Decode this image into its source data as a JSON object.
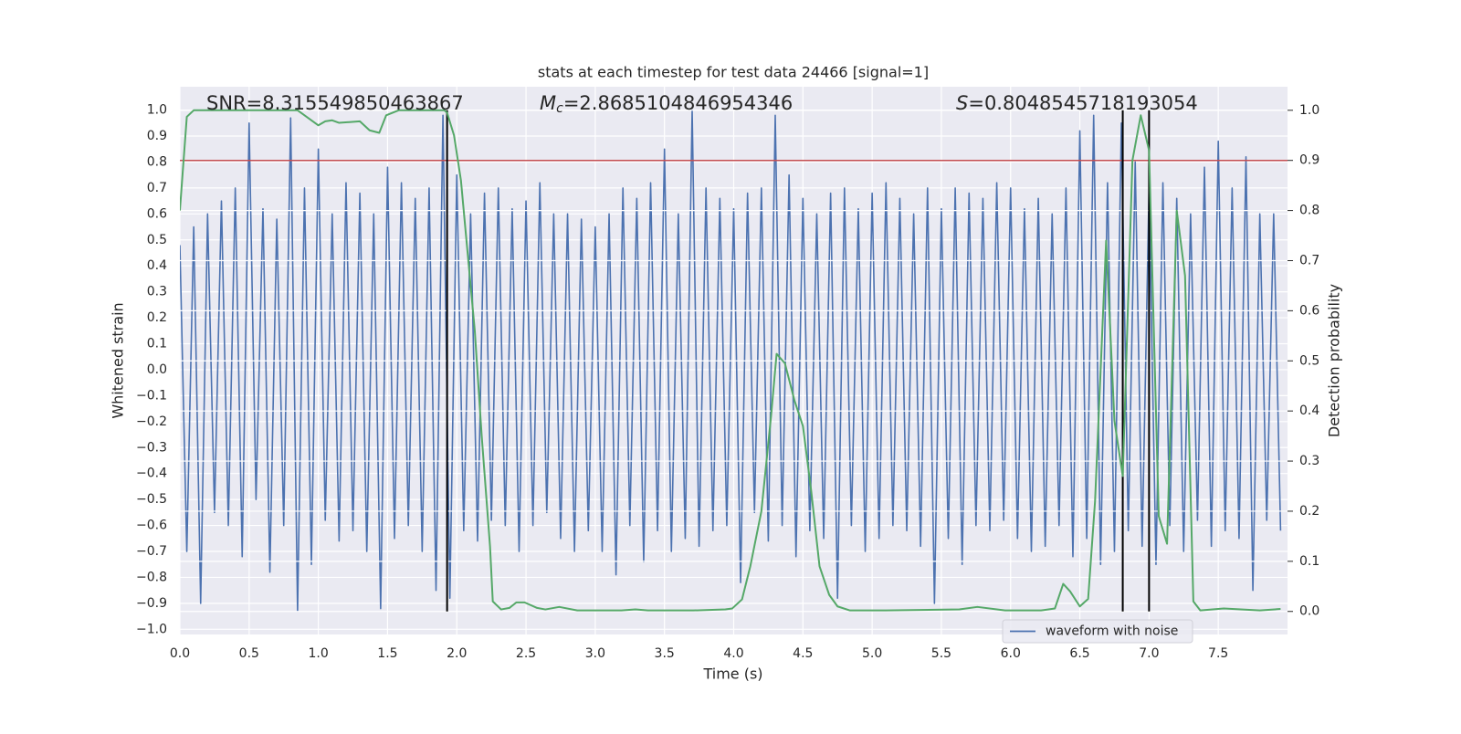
{
  "chart_data": {
    "type": "line",
    "title": "stats at each timestep for test data 24466 [signal=1]",
    "xlabel": "Time (s)",
    "ylabel": "Whitened strain",
    "y2label": "Detection probability",
    "xlim": [
      0,
      8.0
    ],
    "ylim": [
      -1.02,
      1.09
    ],
    "y2lim": [
      -0.046,
      1.047
    ],
    "grid": true,
    "legend": "lower right",
    "xticks": [
      {
        "value": 0,
        "label": "0.0"
      },
      {
        "value": 0.5,
        "label": "0.5"
      },
      {
        "value": 1,
        "label": "1.0"
      },
      {
        "value": 1.5,
        "label": "1.5"
      },
      {
        "value": 2,
        "label": "2.0"
      },
      {
        "value": 2.5,
        "label": "2.5"
      },
      {
        "value": 3,
        "label": "3.0"
      },
      {
        "value": 3.5,
        "label": "3.5"
      },
      {
        "value": 4,
        "label": "4.0"
      },
      {
        "value": 4.5,
        "label": "4.5"
      },
      {
        "value": 5,
        "label": "5.0"
      },
      {
        "value": 5.5,
        "label": "5.5"
      },
      {
        "value": 6,
        "label": "6.0"
      },
      {
        "value": 6.5,
        "label": "6.5"
      },
      {
        "value": 7,
        "label": "7.0"
      },
      {
        "value": 7.5,
        "label": "7.5"
      }
    ],
    "yticks": [
      {
        "value": 1,
        "label": "1.0"
      },
      0.9,
      0.8,
      0.7,
      0.6,
      0.5,
      0.4,
      0.3,
      0.2,
      0.1,
      {
        "value": 0,
        "label": "0.0"
      },
      {
        "value": -0.1,
        "label": "−0.1"
      },
      {
        "value": -0.2,
        "label": "−0.2"
      },
      {
        "value": -0.3,
        "label": "−0.3"
      },
      {
        "value": -0.4,
        "label": "−0.4"
      },
      {
        "value": -0.5,
        "label": "−0.5"
      },
      {
        "value": -0.6,
        "label": "−0.6"
      },
      {
        "value": -0.7,
        "label": "−0.7"
      },
      {
        "value": -0.8,
        "label": "−0.8"
      },
      {
        "value": -0.9,
        "label": "−0.9"
      },
      {
        "value": -1,
        "label": "−1.0"
      }
    ],
    "y2ticks": [
      {
        "value": 1,
        "label": "1.0"
      },
      0.9,
      0.8,
      0.7,
      0.6,
      0.5,
      0.4,
      0.3,
      0.2,
      0.1,
      {
        "value": 0,
        "label": "0.0"
      }
    ],
    "series": [
      {
        "name": "waveform with noise",
        "color": "#4c72b0",
        "x": [
          0,
          0.05,
          0.1,
          0.15,
          0.2,
          0.25,
          0.3,
          0.35,
          0.4,
          0.45,
          0.5,
          0.55,
          0.6,
          0.65,
          0.7,
          0.75,
          0.8,
          0.85,
          0.9,
          0.95,
          1.0,
          1.05,
          1.1,
          1.15,
          1.2,
          1.25,
          1.3,
          1.35,
          1.4,
          1.45,
          1.5,
          1.55,
          1.6,
          1.65,
          1.7,
          1.75,
          1.8,
          1.85,
          1.9,
          1.95,
          2.0,
          2.05,
          2.1,
          2.15,
          2.2,
          2.25,
          2.3,
          2.35,
          2.4,
          2.45,
          2.5,
          2.55,
          2.6,
          2.65,
          2.7,
          2.75,
          2.8,
          2.85,
          2.9,
          2.95,
          3.0,
          3.05,
          3.1,
          3.15,
          3.2,
          3.25,
          3.3,
          3.35,
          3.4,
          3.45,
          3.5,
          3.55,
          3.6,
          3.65,
          3.7,
          3.75,
          3.8,
          3.85,
          3.9,
          3.95,
          4.0,
          4.05,
          4.1,
          4.15,
          4.2,
          4.25,
          4.3,
          4.35,
          4.4,
          4.45,
          4.5,
          4.55,
          4.6,
          4.65,
          4.7,
          4.75,
          4.8,
          4.85,
          4.9,
          4.95,
          5.0,
          5.05,
          5.1,
          5.15,
          5.2,
          5.25,
          5.3,
          5.35,
          5.4,
          5.45,
          5.5,
          5.55,
          5.6,
          5.65,
          5.7,
          5.75,
          5.8,
          5.85,
          5.9,
          5.95,
          6.0,
          6.05,
          6.1,
          6.15,
          6.2,
          6.25,
          6.3,
          6.35,
          6.4,
          6.45,
          6.5,
          6.55,
          6.6,
          6.65,
          6.7,
          6.75,
          6.8,
          6.85,
          6.9,
          6.95,
          7.0,
          7.05,
          7.1,
          7.15,
          7.2,
          7.25,
          7.3,
          7.35,
          7.4,
          7.45,
          7.5,
          7.55,
          7.6,
          7.65,
          7.7,
          7.75,
          7.8,
          7.85,
          7.9,
          7.95
        ],
        "values": [
          0.48,
          -0.7,
          0.55,
          -0.9,
          0.6,
          -0.55,
          0.65,
          -0.6,
          0.7,
          -0.72,
          0.95,
          -0.5,
          0.62,
          -0.78,
          0.58,
          -0.6,
          0.97,
          -0.93,
          0.7,
          -0.75,
          0.85,
          -0.58,
          0.6,
          -0.66,
          0.72,
          -0.62,
          0.68,
          -0.7,
          0.6,
          -0.92,
          0.78,
          -0.65,
          0.72,
          -0.6,
          0.66,
          -0.7,
          0.7,
          -0.85,
          0.98,
          -0.88,
          0.75,
          -0.62,
          0.6,
          -0.66,
          0.68,
          -0.58,
          0.7,
          -0.6,
          0.62,
          -0.7,
          0.65,
          -0.6,
          0.72,
          -0.55,
          0.6,
          -0.65,
          0.6,
          -0.7,
          0.58,
          -0.62,
          0.55,
          -0.7,
          0.6,
          -0.79,
          0.7,
          -0.6,
          0.66,
          -0.74,
          0.72,
          -0.62,
          0.85,
          -0.7,
          0.6,
          -0.65,
          1.0,
          -0.68,
          0.7,
          -0.62,
          0.66,
          -0.6,
          0.62,
          -0.82,
          0.68,
          -0.55,
          0.7,
          -0.66,
          0.98,
          -0.6,
          0.75,
          -0.72,
          0.66,
          -0.62,
          0.6,
          -0.65,
          0.68,
          -0.88,
          0.7,
          -0.6,
          0.62,
          -0.7,
          0.68,
          -0.65,
          0.72,
          -0.6,
          0.66,
          -0.62,
          0.6,
          -0.68,
          0.7,
          -0.9,
          0.62,
          -0.65,
          0.7,
          -0.75,
          0.68,
          -0.6,
          0.66,
          -0.62,
          0.72,
          -0.58,
          0.7,
          -0.65,
          0.62,
          -0.7,
          0.66,
          -0.68,
          0.6,
          -0.6,
          0.7,
          -0.72,
          0.92,
          -0.65,
          0.98,
          -0.75,
          0.72,
          -0.7,
          0.95,
          -0.62,
          0.8,
          -0.68,
          0.7,
          -0.75,
          0.72,
          -0.6,
          0.66,
          -0.7,
          0.6,
          -0.58,
          0.78,
          -0.68,
          0.88,
          -0.62,
          0.7,
          -0.65,
          0.82,
          -0.85,
          0.6,
          -0.58,
          0.6,
          -0.62
        ]
      },
      {
        "color": "#55a868",
        "axis": "y2",
        "x": [
          0,
          0.05,
          0.1,
          0.85,
          0.95,
          1.0,
          1.05,
          1.1,
          1.15,
          1.3,
          1.37,
          1.44,
          1.49,
          1.58,
          1.91,
          1.93,
          1.98,
          2.03,
          2.08,
          2.13,
          2.18,
          2.24,
          2.26,
          2.32,
          2.38,
          2.43,
          2.49,
          2.58,
          2.64,
          2.74,
          2.87,
          3.19,
          3.29,
          3.38,
          3.71,
          3.94,
          3.99,
          4.06,
          4.12,
          4.2,
          4.27,
          4.31,
          4.37,
          4.44,
          4.5,
          4.56,
          4.62,
          4.69,
          4.75,
          4.84,
          5.1,
          5.63,
          5.76,
          5.96,
          6.22,
          6.32,
          6.38,
          6.43,
          6.5,
          6.56,
          6.61,
          6.69,
          6.75,
          6.81,
          6.88,
          6.94,
          7.0,
          7.07,
          7.13,
          7.2,
          7.26,
          7.32,
          7.37,
          7.54,
          7.8,
          7.95
        ],
        "values": [
          0.8,
          0.987,
          1.0,
          1.0,
          0.98,
          0.97,
          0.978,
          0.98,
          0.975,
          0.978,
          0.96,
          0.955,
          0.99,
          1.0,
          1.0,
          0.995,
          0.95,
          0.86,
          0.71,
          0.56,
          0.35,
          0.13,
          0.02,
          0.004,
          0.007,
          0.018,
          0.018,
          0.007,
          0.004,
          0.009,
          0.002,
          0.002,
          0.004,
          0.002,
          0.002,
          0.004,
          0.006,
          0.024,
          0.09,
          0.2,
          0.39,
          0.514,
          0.495,
          0.42,
          0.37,
          0.24,
          0.09,
          0.033,
          0.01,
          0.002,
          0.002,
          0.004,
          0.009,
          0.002,
          0.002,
          0.006,
          0.055,
          0.04,
          0.01,
          0.025,
          0.22,
          0.74,
          0.38,
          0.27,
          0.9,
          0.99,
          0.92,
          0.19,
          0.135,
          0.8,
          0.67,
          0.02,
          0.002,
          0.006,
          0.002,
          0.005
        ]
      }
    ],
    "threshold": {
      "value": 0.9,
      "axis": "y2",
      "color": "#c44e52"
    },
    "vlines": {
      "x": [
        1.93,
        6.81,
        7.0
      ],
      "ymin": 0,
      "ymax": 1,
      "axis": "y2",
      "color": "#000000"
    },
    "annotations": [
      {
        "text": "SNR=8.315549850463867"
      },
      {
        "symbol": "M",
        "sub": "c",
        "text": "=2.8685104846954346"
      },
      {
        "symbol": "S",
        "text": "=0.8048545718193054"
      }
    ]
  }
}
